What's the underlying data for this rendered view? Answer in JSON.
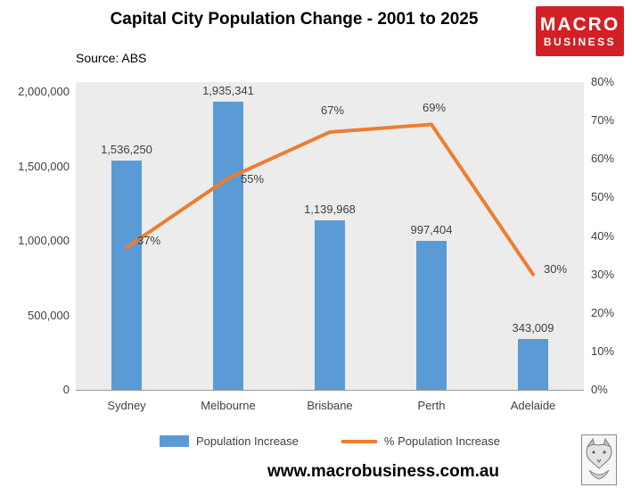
{
  "header": {
    "title": "Capital City Population Change - 2001 to 2025",
    "source": "Source: ABS",
    "logo": {
      "line1": "MACRO",
      "line2": "BUSINESS",
      "bg_color": "#d32026"
    }
  },
  "chart_data": {
    "type": "bar",
    "title": "Capital City Population Change - 2001 to 2025",
    "categories": [
      "Sydney",
      "Melbourne",
      "Brisbane",
      "Perth",
      "Adelaide"
    ],
    "series": [
      {
        "name": "Population Increase",
        "type": "bar",
        "axis": "left",
        "color": "#5B9BD5",
        "values": [
          1536250,
          1935341,
          1139968,
          997404,
          343009
        ],
        "labels": [
          "1,536,250",
          "1,935,341",
          "1,139,968",
          "997,404",
          "343,009"
        ]
      },
      {
        "name": "% Population Increase",
        "type": "line",
        "axis": "right",
        "color": "#ED7D31",
        "values": [
          37,
          55,
          67,
          69,
          30
        ],
        "labels": [
          "37%",
          "55%",
          "67%",
          "69%",
          "30%"
        ]
      }
    ],
    "left_axis": {
      "min": 0,
      "max": 2000000,
      "tick_labels": [
        "0",
        "500,000",
        "1,000,000",
        "1,500,000",
        "2,000,000"
      ]
    },
    "right_axis": {
      "min": 0,
      "max": 80,
      "tick_labels": [
        "0%",
        "10%",
        "20%",
        "30%",
        "40%",
        "50%",
        "60%",
        "70%",
        "80%"
      ]
    },
    "legend_position": "bottom",
    "grid": false,
    "plot_bg": "#ececec"
  },
  "footer": {
    "url": "www.macrobusiness.com.au",
    "fox_logo": "fox-drawing-icon"
  }
}
